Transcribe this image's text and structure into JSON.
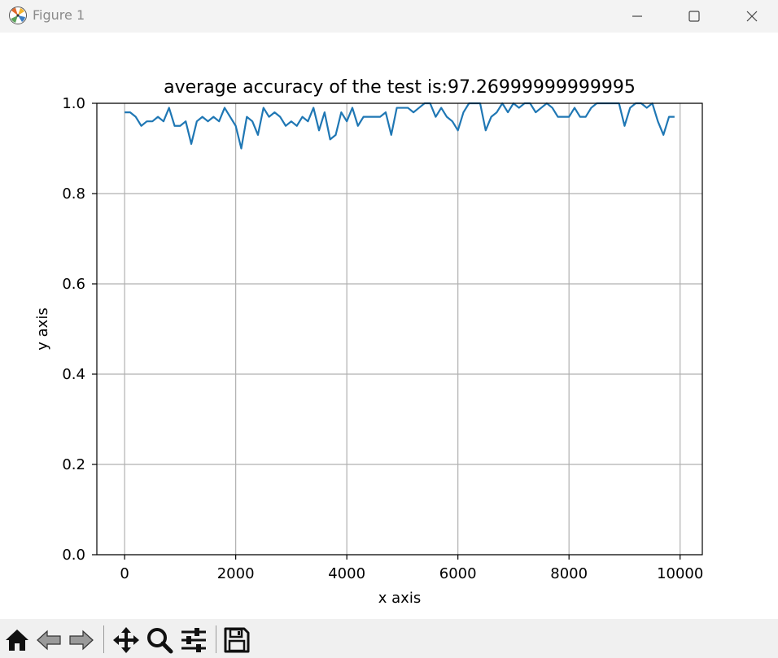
{
  "window": {
    "title": "Figure 1",
    "app_icon": "matplotlib-logo-icon",
    "controls": [
      "minimize-icon",
      "maximize-icon",
      "close-icon"
    ]
  },
  "toolbar": {
    "buttons": [
      {
        "name": "home-icon",
        "action": "Reset original view"
      },
      {
        "name": "back-arrow-icon",
        "action": "Back to previous view"
      },
      {
        "name": "forward-arrow-icon",
        "action": "Forward to next view"
      },
      {
        "name": "pan-move-icon",
        "action": "Pan axes"
      },
      {
        "name": "zoom-magnifier-icon",
        "action": "Zoom to rectangle"
      },
      {
        "name": "configure-sliders-icon",
        "action": "Configure subplots"
      },
      {
        "name": "save-floppy-icon",
        "action": "Save the figure"
      }
    ]
  },
  "chart_data": {
    "type": "line",
    "title": "average accuracy of the test is:97.26999999999995",
    "xlabel": "x axis",
    "ylabel": "y axis",
    "xlim": [
      -500,
      10400
    ],
    "ylim": [
      0.0,
      1.0
    ],
    "xticks": [
      0,
      2000,
      4000,
      6000,
      8000,
      10000
    ],
    "xtick_labels": [
      "0",
      "2000",
      "4000",
      "6000",
      "8000",
      "10000"
    ],
    "yticks": [
      0.0,
      0.2,
      0.4,
      0.6,
      0.8,
      1.0
    ],
    "ytick_labels": [
      "0.0",
      "0.2",
      "0.4",
      "0.6",
      "0.8",
      "1.0"
    ],
    "grid": true,
    "line_color": "#1f77b4",
    "series": [
      {
        "x": [
          0,
          100,
          200,
          300,
          400,
          500,
          600,
          700,
          800,
          900,
          1000,
          1100,
          1200,
          1300,
          1400,
          1500,
          1600,
          1700,
          1800,
          1900,
          2000,
          2100,
          2200,
          2300,
          2400,
          2500,
          2600,
          2700,
          2800,
          2900,
          3000,
          3100,
          3200,
          3300,
          3400,
          3500,
          3600,
          3700,
          3800,
          3900,
          4000,
          4100,
          4200,
          4300,
          4400,
          4500,
          4600,
          4700,
          4800,
          4900,
          5000,
          5100,
          5200,
          5300,
          5400,
          5500,
          5600,
          5700,
          5800,
          5900,
          6000,
          6100,
          6200,
          6300,
          6400,
          6500,
          6600,
          6700,
          6800,
          6900,
          7000,
          7100,
          7200,
          7300,
          7400,
          7500,
          7600,
          7700,
          7800,
          7900,
          8000,
          8100,
          8200,
          8300,
          8400,
          8500,
          8600,
          8700,
          8800,
          8900,
          9000,
          9100,
          9200,
          9300,
          9400,
          9500,
          9600,
          9700,
          9800,
          9900
        ],
        "y": [
          0.98,
          0.98,
          0.97,
          0.95,
          0.96,
          0.96,
          0.97,
          0.96,
          0.99,
          0.95,
          0.95,
          0.96,
          0.91,
          0.96,
          0.97,
          0.96,
          0.97,
          0.96,
          0.99,
          0.97,
          0.95,
          0.9,
          0.97,
          0.96,
          0.93,
          0.99,
          0.97,
          0.98,
          0.97,
          0.95,
          0.96,
          0.95,
          0.97,
          0.96,
          0.99,
          0.94,
          0.98,
          0.92,
          0.93,
          0.98,
          0.96,
          0.99,
          0.95,
          0.97,
          0.97,
          0.97,
          0.97,
          0.98,
          0.93,
          0.99,
          0.99,
          0.99,
          0.98,
          0.99,
          1.0,
          1.0,
          0.97,
          0.99,
          0.97,
          0.96,
          0.94,
          0.98,
          1.0,
          1.0,
          1.0,
          0.94,
          0.97,
          0.98,
          1.0,
          0.98,
          1.0,
          0.99,
          1.0,
          1.0,
          0.98,
          0.99,
          1.0,
          0.99,
          0.97,
          0.97,
          0.97,
          0.99,
          0.97,
          0.97,
          0.99,
          1.0,
          1.0,
          1.0,
          1.0,
          1.0,
          0.95,
          0.99,
          1.0,
          1.0,
          0.99,
          1.0,
          0.96,
          0.93,
          0.97,
          0.97
        ]
      }
    ]
  }
}
